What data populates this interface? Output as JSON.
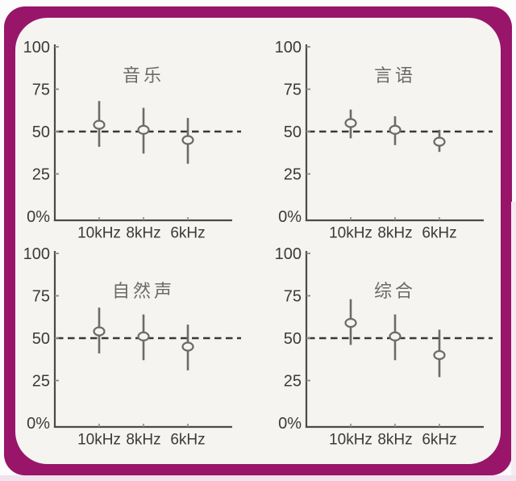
{
  "page": {
    "background": "#fdfcfd"
  },
  "frame": {
    "border_color": "#98156a",
    "inner_background": "#f6f4f1",
    "bottom_strip_color": "#f3e1ed",
    "right_strip_color": "#f6ebf3"
  },
  "style": {
    "axis_color": "#4a4a4a",
    "tick_color": "#8a8a8a",
    "tick_label_color": "#3a3a3a",
    "marker_color": "#6b6b6b",
    "dashed_line_color": "#383838",
    "title_color": "#6a6a6a"
  },
  "chart_data": [
    {
      "type": "scatter",
      "title": "音乐",
      "position": "top-left",
      "categories": [
        "10kHz",
        "8kHz",
        "6kHz"
      ],
      "series": [
        {
          "values": [
            54,
            51,
            45
          ],
          "err_low": [
            41,
            37,
            31
          ],
          "err_high": [
            68,
            64,
            58
          ]
        }
      ],
      "baseline": 50,
      "ylim": [
        0,
        100
      ],
      "ytick_values": [
        100,
        75,
        50,
        25,
        0
      ],
      "ytick_labels": [
        "100",
        "75",
        "50",
        "25",
        "0%"
      ],
      "grid": false,
      "legend": false
    },
    {
      "type": "scatter",
      "title": "言语",
      "position": "top-right",
      "categories": [
        "10kHz",
        "8kHz",
        "6kHz"
      ],
      "series": [
        {
          "values": [
            55,
            51,
            44
          ],
          "err_low": [
            46,
            42,
            38
          ],
          "err_high": [
            63,
            59,
            51
          ]
        }
      ],
      "baseline": 50,
      "ylim": [
        0,
        100
      ],
      "ytick_values": [
        100,
        75,
        50,
        25,
        0
      ],
      "ytick_labels": [
        "100",
        "75",
        "50",
        "25",
        "0%"
      ],
      "grid": false,
      "legend": false
    },
    {
      "type": "scatter",
      "title": "自然声",
      "position": "bottom-left",
      "categories": [
        "10kHz",
        "8kHz",
        "6kHz"
      ],
      "series": [
        {
          "values": [
            54,
            51,
            45
          ],
          "err_low": [
            41,
            37,
            31
          ],
          "err_high": [
            68,
            64,
            58
          ]
        }
      ],
      "baseline": 50,
      "ylim": [
        0,
        100
      ],
      "ytick_values": [
        100,
        75,
        50,
        25,
        0
      ],
      "ytick_labels": [
        "100",
        "75",
        "50",
        "25",
        "0%"
      ],
      "grid": false,
      "legend": false
    },
    {
      "type": "scatter",
      "title": "综合",
      "position": "bottom-right",
      "categories": [
        "10kHz",
        "8kHz",
        "6kHz"
      ],
      "series": [
        {
          "values": [
            59,
            51,
            40
          ],
          "err_low": [
            46,
            37,
            27
          ],
          "err_high": [
            73,
            64,
            55
          ]
        }
      ],
      "baseline": 50,
      "ylim": [
        0,
        100
      ],
      "ytick_values": [
        100,
        75,
        50,
        25,
        0
      ],
      "ytick_labels": [
        "100",
        "75",
        "50",
        "25",
        "0%"
      ],
      "grid": false,
      "legend": false
    }
  ]
}
